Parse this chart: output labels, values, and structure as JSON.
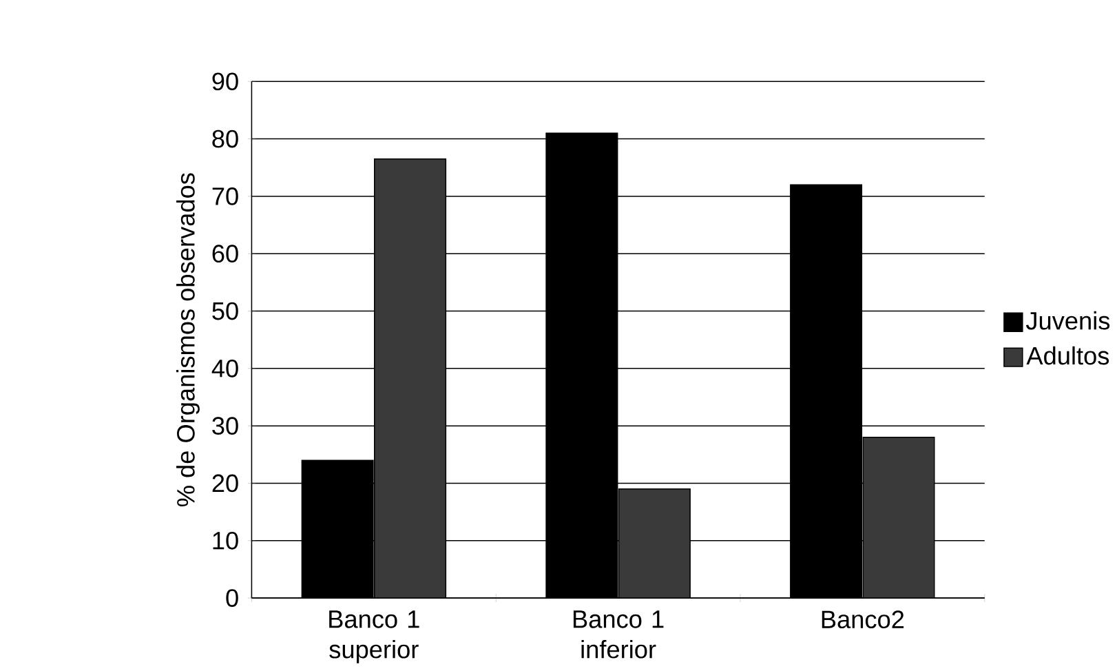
{
  "chart_data": {
    "type": "bar",
    "ylabel": "% de Organismos observados",
    "categories": [
      "Banco 1 superior",
      "Banco 1 inferior",
      "Banco2"
    ],
    "series": [
      {
        "name": "Juvenis",
        "color": "#000000",
        "values": [
          24,
          81,
          72
        ]
      },
      {
        "name": "Adultos",
        "color": "#3a3a3a",
        "values": [
          76.5,
          19,
          28
        ]
      }
    ],
    "ylim": [
      0,
      90
    ],
    "yticks": [
      0,
      10,
      20,
      30,
      40,
      50,
      60,
      70,
      80,
      90
    ],
    "grid": "y",
    "legend": "right"
  }
}
